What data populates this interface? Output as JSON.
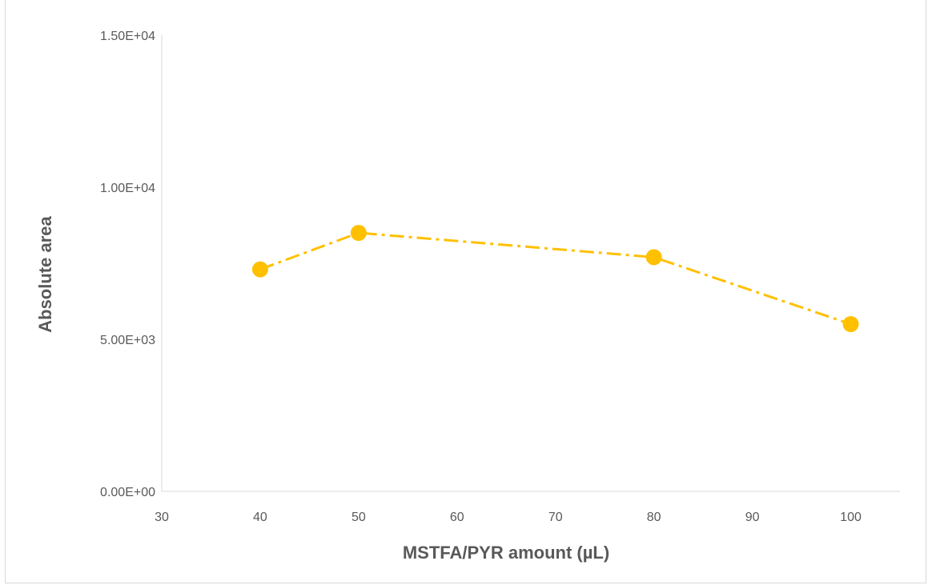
{
  "chart_data": {
    "type": "line",
    "title": "",
    "xlabel": "MSTFA/PYR amount (µL)",
    "ylabel": "Absolute area",
    "xlim": [
      30,
      105
    ],
    "ylim": [
      0,
      15000
    ],
    "x_ticks": [
      30,
      40,
      50,
      60,
      70,
      80,
      90,
      100
    ],
    "y_ticks": [
      0,
      5000,
      10000,
      15000
    ],
    "y_tick_labels": [
      "0.00E+00",
      "5.00E+03",
      "1.00E+04",
      "1.50E+04"
    ],
    "x_tick_labels": [
      "30",
      "40",
      "50",
      "60",
      "70",
      "80",
      "90",
      "100"
    ],
    "grid": false,
    "legend": "none",
    "series": [
      {
        "x": [
          40,
          50,
          80,
          100
        ],
        "values": [
          7300,
          8500,
          7700,
          5500
        ],
        "color": "#FFC000",
        "line_style": "dash-dot",
        "marker": "circle"
      }
    ]
  }
}
